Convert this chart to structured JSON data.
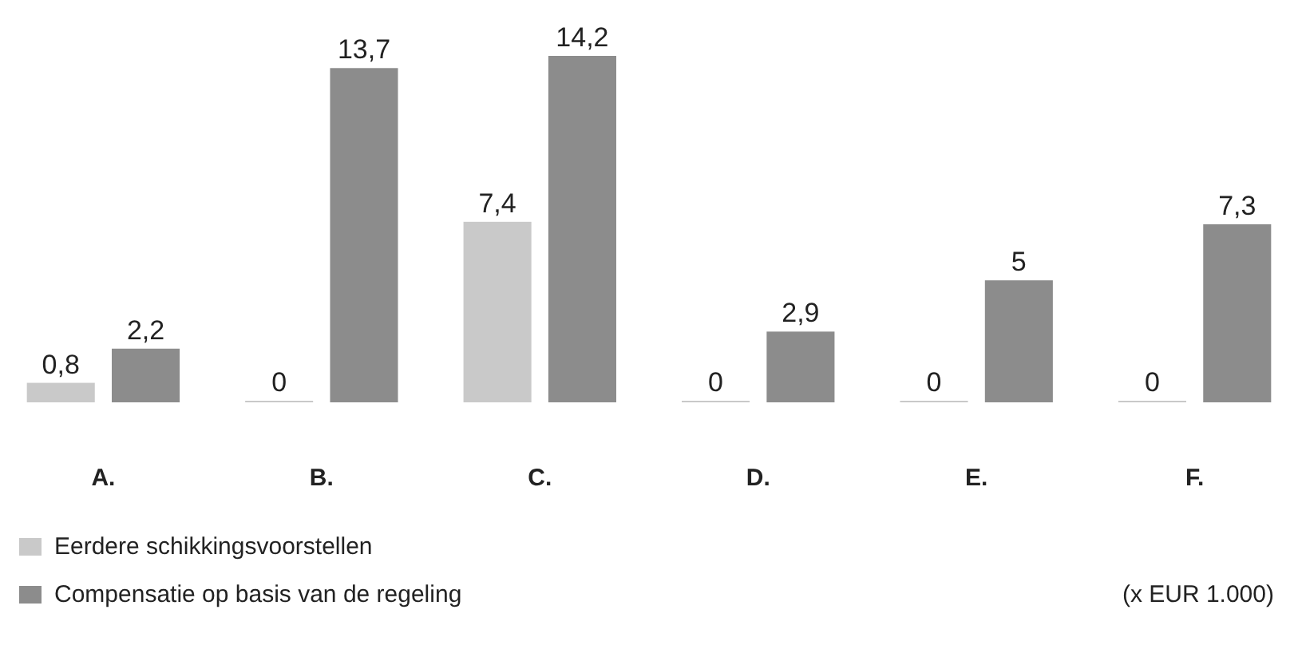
{
  "chart_data": {
    "type": "bar",
    "categories": [
      "A.",
      "B.",
      "C.",
      "D.",
      "E.",
      "F."
    ],
    "series": [
      {
        "name": "Eerdere schikkingsvoorstellen",
        "color": "#c9c9c9",
        "values": [
          0.8,
          0,
          7.4,
          0,
          0,
          0
        ],
        "value_labels": [
          "0,8",
          "0",
          "7,4",
          "0",
          "0",
          "0"
        ]
      },
      {
        "name": "Compensatie op basis van de regeling",
        "color": "#8c8c8c",
        "values": [
          2.2,
          13.7,
          14.2,
          2.9,
          5,
          7.3
        ],
        "value_labels": [
          "2,2",
          "13,7",
          "14,2",
          "2,9",
          "5",
          "7,3"
        ]
      }
    ],
    "legend": "bottom left",
    "annotations": [
      "(x EUR 1.000)"
    ]
  }
}
